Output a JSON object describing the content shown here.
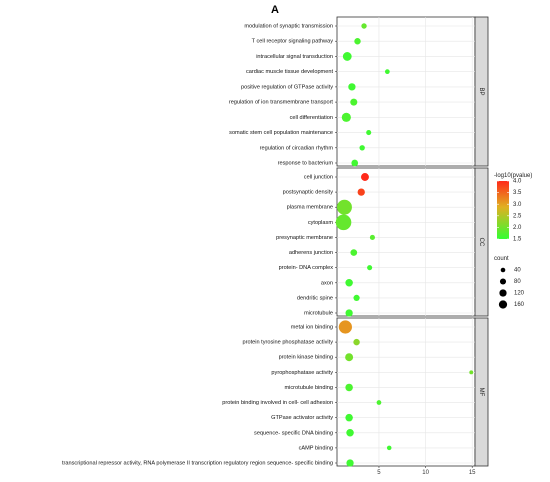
{
  "panel_label": "A",
  "chart_data": {
    "type": "scatter",
    "title": "A",
    "xlabel": "",
    "ylabel": "",
    "x_ticks": [
      5,
      10,
      15
    ],
    "xlim": [
      0.5,
      15.3
    ],
    "grid": true,
    "color_legend": {
      "title": "-log10(pvalue)",
      "ticks": [
        "4.0",
        "3.5",
        "3.0",
        "2.5",
        "2.0",
        "1.5"
      ],
      "range": [
        1.5,
        4.0
      ],
      "low_color": "#33ff33",
      "high_color": "#ff2a1a",
      "mid_color": "#e0b021"
    },
    "size_legend": {
      "title": "count",
      "values": [
        40,
        80,
        120,
        160
      ]
    },
    "facets": [
      {
        "label": "BP",
        "terms": [
          {
            "name": "modulation of synaptic transmission",
            "x": 3.4,
            "count": 12,
            "p": 1.9
          },
          {
            "name": "T cell receptor signaling pathway",
            "x": 2.7,
            "count": 20,
            "p": 1.7
          },
          {
            "name": "intracellular signal transduction",
            "x": 1.6,
            "count": 45,
            "p": 1.6
          },
          {
            "name": "cardiac muscle tissue development",
            "x": 5.9,
            "count": 8,
            "p": 1.6
          },
          {
            "name": "positive regulation of GTPase activity",
            "x": 2.1,
            "count": 28,
            "p": 1.6
          },
          {
            "name": "regulation of ion transmembrane transport",
            "x": 2.3,
            "count": 25,
            "p": 1.7
          },
          {
            "name": "cell differentiation",
            "x": 1.5,
            "count": 50,
            "p": 1.7
          },
          {
            "name": "somatic stem cell population maintenance",
            "x": 3.9,
            "count": 10,
            "p": 1.6
          },
          {
            "name": "regulation of circadian rhythm",
            "x": 3.2,
            "count": 12,
            "p": 1.6
          },
          {
            "name": "response to bacterium",
            "x": 2.4,
            "count": 22,
            "p": 1.6
          }
        ]
      },
      {
        "label": "CC",
        "terms": [
          {
            "name": "cell junction",
            "x": 3.5,
            "count": 35,
            "p": 4.2
          },
          {
            "name": "postsynaptic density",
            "x": 3.1,
            "count": 28,
            "p": 3.8
          },
          {
            "name": "plasma membrane",
            "x": 1.3,
            "count": 160,
            "p": 2.0
          },
          {
            "name": "cytoplasm",
            "x": 1.2,
            "count": 175,
            "p": 1.9
          },
          {
            "name": "presynaptic membrane",
            "x": 4.3,
            "count": 10,
            "p": 1.8
          },
          {
            "name": "adherens junction",
            "x": 2.3,
            "count": 22,
            "p": 1.7
          },
          {
            "name": "protein- DNA complex",
            "x": 4.0,
            "count": 10,
            "p": 1.6
          },
          {
            "name": "axon",
            "x": 1.8,
            "count": 30,
            "p": 1.6
          },
          {
            "name": "dendritic spine",
            "x": 2.6,
            "count": 18,
            "p": 1.6
          },
          {
            "name": "microtubule",
            "x": 1.8,
            "count": 28,
            "p": 1.6
          }
        ]
      },
      {
        "label": "MF",
        "terms": [
          {
            "name": "metal ion binding",
            "x": 1.4,
            "count": 120,
            "p": 3.1
          },
          {
            "name": "protein tyrosine phosphatase activity",
            "x": 2.6,
            "count": 20,
            "p": 2.2
          },
          {
            "name": "protein kinase binding",
            "x": 1.8,
            "count": 35,
            "p": 2.0
          },
          {
            "name": "pyrophosphatase activity",
            "x": 14.9,
            "count": 4,
            "p": 2.0
          },
          {
            "name": "microtubule binding",
            "x": 1.8,
            "count": 30,
            "p": 1.7
          },
          {
            "name": "protein binding involved in cell- cell adhesion",
            "x": 5.0,
            "count": 8,
            "p": 1.7
          },
          {
            "name": "GTPase activator activity",
            "x": 1.8,
            "count": 30,
            "p": 1.6
          },
          {
            "name": "sequence- specific DNA binding",
            "x": 1.9,
            "count": 30,
            "p": 1.6
          },
          {
            "name": "cAMP binding",
            "x": 6.1,
            "count": 7,
            "p": 1.6
          },
          {
            "name": "transcriptional repressor activity, RNA polymerase II transcription regulatory region sequence- specific binding",
            "x": 1.9,
            "count": 28,
            "p": 1.6
          }
        ]
      }
    ]
  }
}
